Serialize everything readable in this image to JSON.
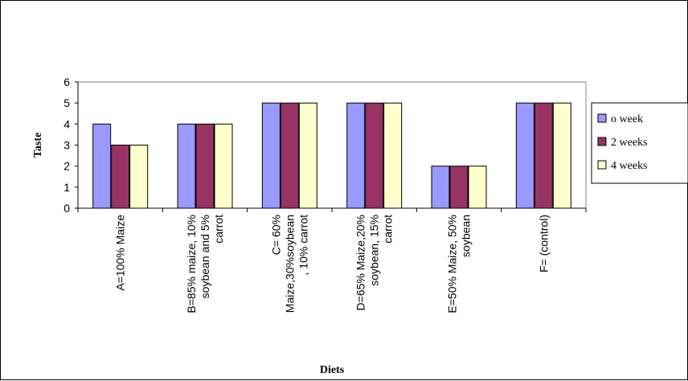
{
  "chart_data": {
    "type": "bar",
    "title": "",
    "xlabel": "Diets",
    "ylabel": "Taste",
    "ylim": [
      0,
      6
    ],
    "yticks": [
      0,
      1,
      2,
      3,
      4,
      5,
      6
    ],
    "grid": false,
    "legend_position": "right",
    "categories": [
      [
        "A=100% Maize"
      ],
      [
        "B=85% maize, 10%",
        "soybean and 5%",
        "carrot"
      ],
      [
        "C= 60%",
        "Maize,30%soybean",
        ", 10% carrot"
      ],
      [
        "D=65% Maize,20%",
        "soybean, 15%",
        "carrot"
      ],
      [
        "E=50% Maize, 50%",
        "soybean"
      ],
      [
        "F= (control)"
      ]
    ],
    "series": [
      {
        "name": "o week",
        "color": "#9999FF",
        "values": [
          4,
          4,
          5,
          5,
          2,
          5
        ]
      },
      {
        "name": "2 weeks",
        "color": "#993366",
        "values": [
          3,
          4,
          5,
          5,
          2,
          5
        ]
      },
      {
        "name": "4 weeks",
        "color": "#FFFFCC",
        "values": [
          3,
          4,
          5,
          5,
          2,
          5
        ]
      }
    ],
    "plot_background": "#FFFFFF",
    "plot_border_color": "#808080"
  }
}
